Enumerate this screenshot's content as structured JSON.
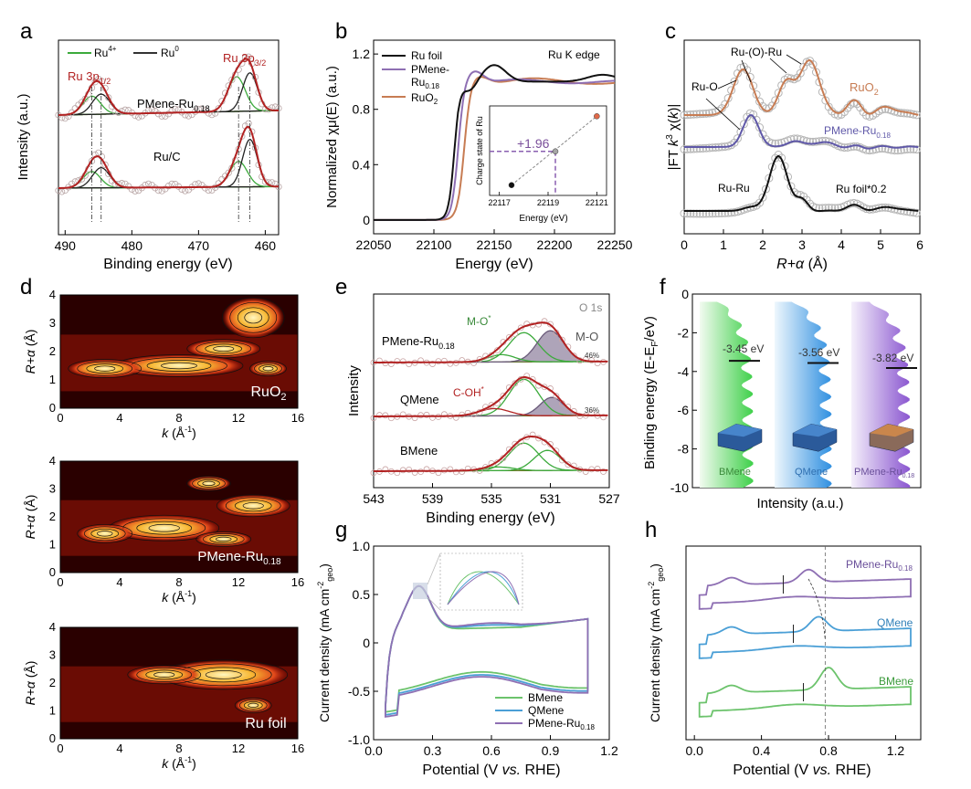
{
  "colors": {
    "green": "#3caa3c",
    "dark": "#222222",
    "red": "#b22222",
    "purple": "#8e6fb3",
    "blue": "#3f8fc9",
    "orange": "#c77c53",
    "grey": "#999999",
    "olive": "#6b7d2a"
  },
  "chart_data": [
    {
      "id": "a",
      "type": "line",
      "xlabel": "Binding energy (eV)",
      "ylabel": "Intensity (a.u.)",
      "xlim": [
        491,
        458
      ],
      "xticks": [
        490,
        480,
        470,
        460
      ],
      "legend": [
        "Ru4+",
        "Ru0"
      ],
      "annotations": [
        "Ru 3p1/2",
        "Ru 3p3/2",
        "PMene-Ru0.18",
        "Ru/C"
      ],
      "series": [
        {
          "name": "PMene-Ru0.18",
          "peaks_eV": [
            486.0,
            484.6,
            464.3,
            462.3
          ]
        },
        {
          "name": "Ru/C",
          "peaks_eV": [
            486.0,
            484.6,
            464.0,
            462.3
          ]
        }
      ]
    },
    {
      "id": "b",
      "type": "line",
      "title": "Ru K edge",
      "xlabel": "Energy (eV)",
      "ylabel": "Normalized χμ(E) (a.u.)",
      "xlim": [
        22050,
        22250
      ],
      "ylim": [
        -0.1,
        1.3
      ],
      "xticks": [
        22050,
        22100,
        22150,
        22200,
        22250
      ],
      "yticks": [
        0,
        0.4,
        0.8,
        1.2
      ],
      "legend": [
        "Ru foil",
        "PMene-Ru0.18",
        "RuO2"
      ],
      "inset": {
        "xlabel": "Energy (eV)",
        "ylabel": "Charge state of Ru",
        "xticks": [
          22117,
          22119,
          22121
        ],
        "points": [
          {
            "x": 22117.5,
            "y": 0
          },
          {
            "x": 22119.3,
            "y": 1.96
          },
          {
            "x": 22121.0,
            "y": 4
          }
        ],
        "label": "+1.96"
      }
    },
    {
      "id": "c",
      "type": "line",
      "xlabel": "R+α (Å)",
      "ylabel": "|FT k3 χ(k)|",
      "xlim": [
        0,
        6
      ],
      "xticks": [
        0,
        1,
        2,
        3,
        4,
        5,
        6
      ],
      "series": [
        "RuO2",
        "PMene-Ru0.18",
        "Ru foil*0.2"
      ],
      "annotations": [
        "Ru-(O)-Ru",
        "Ru-O",
        "Ru-Ru"
      ],
      "peaks_A": {
        "RuO2": [
          1.5,
          2.6,
          3.1
        ],
        "PMene-Ru0.18": [
          1.7
        ],
        "Ru foil*0.2": [
          2.4
        ]
      }
    },
    {
      "id": "d",
      "type": "heatmap",
      "xlabel": "k (Å-1)",
      "ylabel": "R+α (Å)",
      "xlim": [
        0,
        16
      ],
      "ylim": [
        0,
        4
      ],
      "xticks": [
        0,
        4,
        8,
        12,
        16
      ],
      "yticks": [
        0,
        1,
        2,
        3,
        4
      ],
      "panels": [
        {
          "name": "RuO2",
          "maxima": [
            {
              "k": 13,
              "R": 3.2
            },
            {
              "k": 8,
              "R": 1.5
            }
          ]
        },
        {
          "name": "PMene-Ru0.18",
          "maxima": [
            {
              "k": 7,
              "R": 1.6
            },
            {
              "k": 13,
              "R": 2.4
            }
          ]
        },
        {
          "name": "Ru foil",
          "maxima": [
            {
              "k": 11,
              "R": 2.3
            }
          ]
        }
      ]
    },
    {
      "id": "e",
      "type": "line",
      "title": "O 1s",
      "xlabel": "Binding energy (eV)",
      "ylabel": "Intensity",
      "xlim": [
        543,
        527
      ],
      "xticks": [
        543,
        539,
        535,
        531,
        527
      ],
      "series": [
        {
          "name": "PMene-Ru0.18",
          "components_eV": {
            "M-O*": 532.8,
            "M-O": 530.9
          },
          "fraction": "46%"
        },
        {
          "name": "QMene",
          "components_eV": {
            "C-OH*": 534.8,
            "M-O*": 532.8,
            "M-O": 530.9
          },
          "fraction": "36%"
        },
        {
          "name": "BMene",
          "components_eV": {
            "M-O*": 532.8,
            "M-O": 531.2
          }
        }
      ]
    },
    {
      "id": "f",
      "type": "area",
      "xlabel": "Intensity (a.u.)",
      "ylabel": "Binding energy (E-EF/eV)",
      "ylim": [
        -10,
        0
      ],
      "yticks": [
        0,
        -2,
        -4,
        -6,
        -8,
        -10
      ],
      "series": [
        {
          "name": "BMene",
          "d_band_center_eV": -3.45,
          "label": "-3.45 eV"
        },
        {
          "name": "QMene",
          "d_band_center_eV": -3.56,
          "label": "-3.56 eV"
        },
        {
          "name": "PMene-Ru0.18",
          "d_band_center_eV": -3.82,
          "label": "-3.82 eV"
        }
      ]
    },
    {
      "id": "g",
      "type": "line",
      "xlabel": "Potential (V vs. RHE)",
      "ylabel": "Current density (mA cm-2geo)",
      "xlim": [
        0,
        1.2
      ],
      "ylim": [
        -1.0,
        1.0
      ],
      "xticks": [
        0.0,
        0.3,
        0.6,
        0.9,
        1.2
      ],
      "yticks": [
        -1.0,
        -0.5,
        0,
        0.5,
        1.0
      ],
      "legend": [
        "BMene",
        "QMene",
        "PMene-Ru0.18"
      ],
      "anodic_peak": {
        "x": 0.23,
        "y": 0.57
      }
    },
    {
      "id": "h",
      "type": "line",
      "xlabel": "Potential (V vs. RHE)",
      "ylabel": "Current density (mA cm-2geo)",
      "xlim": [
        -0.05,
        1.35
      ],
      "xticks": [
        0.0,
        0.4,
        0.8,
        1.2
      ],
      "series": [
        {
          "name": "PMene-Ru0.18",
          "peak_V": 0.68
        },
        {
          "name": "QMene",
          "peak_V": 0.74
        },
        {
          "name": "BMene",
          "peak_V": 0.8
        }
      ]
    }
  ],
  "labels": {
    "a": {
      "letter": "a",
      "ylabel": "Intensity (a.u.)",
      "xlabel": "Binding energy (eV)",
      "xticks": [
        "490",
        "480",
        "470",
        "460"
      ],
      "legend_ru4": "Ru",
      "legend_ru4_sup": "4+",
      "legend_ru0": "Ru",
      "legend_ru0_sup": "0",
      "p12_main": "Ru 3p",
      "p12_sub": "1/2",
      "p32_main": "Ru 3p",
      "p32_sub": "3/2",
      "sample1_main": "PMene-Ru",
      "sample1_sub": "0.18",
      "sample2": "Ru/C"
    },
    "b": {
      "letter": "b",
      "ylabel": "Normalized χμ(E) (a.u.)",
      "xlabel": "Energy (eV)",
      "xticks": [
        "22050",
        "22100",
        "22150",
        "22200",
        "22250"
      ],
      "yticks": [
        "0",
        "0.4",
        "0.8",
        "1.2"
      ],
      "edge": "Ru K edge",
      "leg1": "Ru foil",
      "leg2a": "PMene-",
      "leg2b": "Ru",
      "leg2sub": "0.18",
      "leg3": "RuO",
      "leg3sub": "2",
      "inset_y": "Charge state of Ru",
      "inset_x": "Energy (eV)",
      "inset_xticks": [
        "22117",
        "22119",
        "22121"
      ],
      "inset_val": "+1.96"
    },
    "c": {
      "letter": "c",
      "ylabel_a": "|FT ",
      "ylabel_k": "k",
      "ylabel_sup": "3",
      "ylabel_b": " χ(",
      "ylabel_k2": "k",
      "ylabel_c": ")|",
      "xlabel_main": "R+α",
      "xlabel_unit": " (Å)",
      "xticks": [
        "0",
        "1",
        "2",
        "3",
        "4",
        "5",
        "6"
      ],
      "rur": "Ru-(O)-Ru",
      "ruo": "Ru-O",
      "ruru": "Ru-Ru",
      "s1": "RuO",
      "s1sub": "2",
      "s2": "PMene-Ru",
      "s2sub": "0.18",
      "s3": "Ru foil*0.2"
    },
    "d": {
      "letter": "d",
      "ylabel_main": "R+α",
      "ylabel_unit": " (Å)",
      "xlabel_k": "k",
      "xlabel_unit": " (Å",
      "xlabel_sup": "-1",
      "xlabel_close": ")",
      "xticks": [
        "0",
        "4",
        "8",
        "12",
        "16"
      ],
      "yticks": [
        "0",
        "1",
        "2",
        "3",
        "4"
      ],
      "p1": "RuO",
      "p1sub": "2",
      "p2": "PMene-Ru",
      "p2sub": "0.18",
      "p3": "Ru foil"
    },
    "e": {
      "letter": "e",
      "ylabel": "Intensity",
      "xlabel": "Binding energy (eV)",
      "xticks": [
        "543",
        "539",
        "535",
        "531",
        "527"
      ],
      "o1s": "O 1s",
      "mo_star": "M-O",
      "star": "*",
      "mo": "M-O",
      "coh": "C-OH",
      "s1": "PMene-Ru",
      "s1sub": "0.18",
      "s2": "QMene",
      "s3": "BMene",
      "pct1": "46%",
      "pct2": "36%"
    },
    "f": {
      "letter": "f",
      "ylabel": "Binding energy (E-E",
      "ylabel_sub": "F",
      "ylabel_end": "/eV)",
      "xlabel": "Intensity (a.u.)",
      "yticks": [
        "0",
        "-2",
        "-4",
        "-6",
        "-8",
        "-10"
      ],
      "v1": "-3.45 eV",
      "v2": "-3.56 eV",
      "v3": "-3.82 eV",
      "n1": "BMene",
      "n2": "QMene",
      "n3": "PMene-Ru",
      "n3sub": "0.18"
    },
    "g": {
      "letter": "g",
      "ylabel": "Current density (mA cm",
      "ylabel_sup": "-2",
      "ylabel_sub": "geo",
      "ylabel_end": ")",
      "xlabel_a": "Potential (V ",
      "xlabel_vs": "vs.",
      "xlabel_b": " RHE)",
      "xticks": [
        "0.0",
        "0.3",
        "0.6",
        "0.9",
        "1.2"
      ],
      "yticks": [
        "1.0",
        "0.5",
        "0",
        "-0.5",
        "-1.0"
      ],
      "leg1": "BMene",
      "leg2": "QMene",
      "leg3": "PMene-Ru",
      "leg3sub": "0.18"
    },
    "h": {
      "letter": "h",
      "ylabel": "Current density (mA cm",
      "ylabel_sup": "-2",
      "ylabel_sub": "geo",
      "ylabel_end": ")",
      "xlabel_a": "Potential (V ",
      "xlabel_vs": "vs.",
      "xlabel_b": " RHE)",
      "xticks": [
        "0.0",
        "0.4",
        "0.8",
        "1.2"
      ],
      "s1": "PMene-Ru",
      "s1sub": "0.18",
      "s2": "QMene",
      "s3": "BMene"
    }
  }
}
